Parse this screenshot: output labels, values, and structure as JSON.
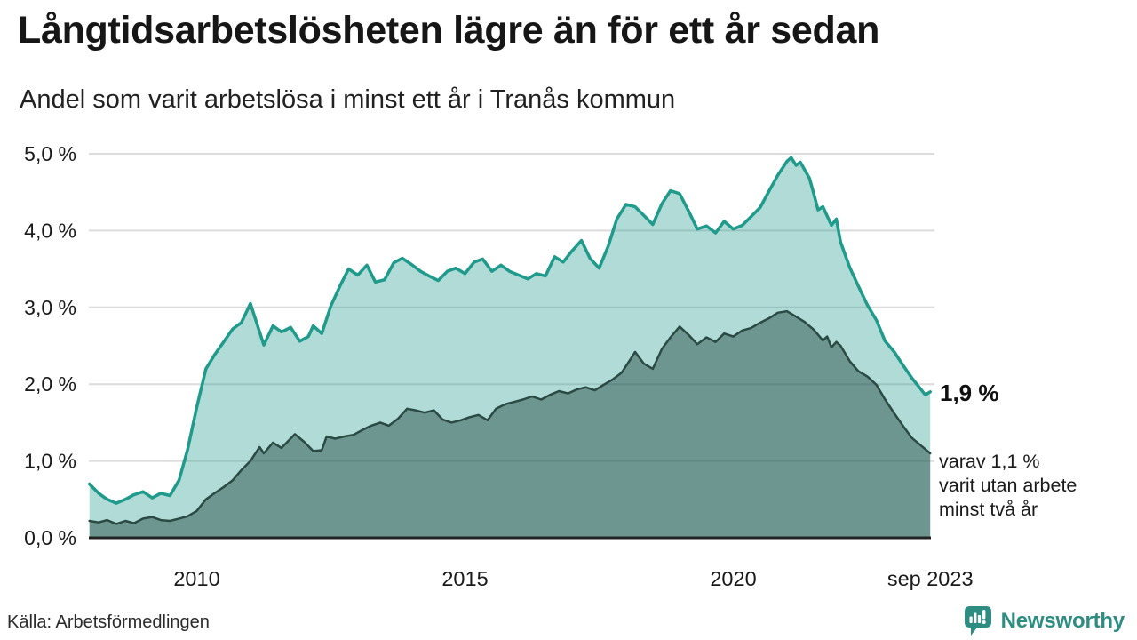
{
  "header": {
    "title": "Långtidsarbetslösheten lägre än för ett år sedan",
    "subtitle": "Andel som varit arbetslösa i minst ett år i Tranås kommun"
  },
  "chart_data": {
    "type": "area",
    "title": "Långtidsarbetslösheten lägre än för ett år sedan",
    "subtitle": "Andel som varit arbetslösa i minst ett år i Tranås kommun",
    "grid": true,
    "legend_position": "none",
    "y_axis": {
      "min": 0,
      "max": 5,
      "ticks": [
        {
          "value": 0,
          "label": "0,0 %"
        },
        {
          "value": 1,
          "label": "1,0 %"
        },
        {
          "value": 2,
          "label": "2,0 %"
        },
        {
          "value": 3,
          "label": "3,0 %"
        },
        {
          "value": 4,
          "label": "4,0 %"
        },
        {
          "value": 5,
          "label": "5,0 %"
        }
      ]
    },
    "x_axis": {
      "start": 2008.0,
      "end": 2023.67,
      "ticks": [
        {
          "year": 2010,
          "label": "2010"
        },
        {
          "year": 2015,
          "label": "2015"
        },
        {
          "year": 2020,
          "label": "2020"
        },
        {
          "year": 2023.67,
          "label": "sep 2023"
        }
      ]
    },
    "series": [
      {
        "name": "Arbetslösa minst ett år",
        "line_color": "#1f9a8b",
        "fill_color": "rgba(42,157,143,0.37)",
        "line_width": 3.5,
        "points": [
          [
            2008.0,
            0.7
          ],
          [
            2008.17,
            0.58
          ],
          [
            2008.33,
            0.5
          ],
          [
            2008.5,
            0.45
          ],
          [
            2008.67,
            0.5
          ],
          [
            2008.83,
            0.56
          ],
          [
            2009.0,
            0.6
          ],
          [
            2009.17,
            0.52
          ],
          [
            2009.33,
            0.58
          ],
          [
            2009.5,
            0.55
          ],
          [
            2009.67,
            0.75
          ],
          [
            2009.83,
            1.15
          ],
          [
            2010.0,
            1.7
          ],
          [
            2010.17,
            2.2
          ],
          [
            2010.33,
            2.38
          ],
          [
            2010.5,
            2.55
          ],
          [
            2010.67,
            2.72
          ],
          [
            2010.83,
            2.8
          ],
          [
            2011.0,
            3.05
          ],
          [
            2011.25,
            2.51
          ],
          [
            2011.42,
            2.76
          ],
          [
            2011.58,
            2.68
          ],
          [
            2011.75,
            2.74
          ],
          [
            2011.92,
            2.56
          ],
          [
            2012.08,
            2.62
          ],
          [
            2012.17,
            2.76
          ],
          [
            2012.33,
            2.66
          ],
          [
            2012.5,
            3.02
          ],
          [
            2012.67,
            3.28
          ],
          [
            2012.83,
            3.5
          ],
          [
            2013.0,
            3.42
          ],
          [
            2013.17,
            3.55
          ],
          [
            2013.33,
            3.33
          ],
          [
            2013.5,
            3.36
          ],
          [
            2013.67,
            3.58
          ],
          [
            2013.83,
            3.64
          ],
          [
            2014.0,
            3.56
          ],
          [
            2014.17,
            3.47
          ],
          [
            2014.33,
            3.41
          ],
          [
            2014.5,
            3.35
          ],
          [
            2014.67,
            3.47
          ],
          [
            2014.83,
            3.51
          ],
          [
            2015.0,
            3.44
          ],
          [
            2015.17,
            3.59
          ],
          [
            2015.33,
            3.63
          ],
          [
            2015.5,
            3.47
          ],
          [
            2015.67,
            3.55
          ],
          [
            2015.83,
            3.47
          ],
          [
            2016.0,
            3.42
          ],
          [
            2016.17,
            3.37
          ],
          [
            2016.33,
            3.44
          ],
          [
            2016.5,
            3.41
          ],
          [
            2016.67,
            3.66
          ],
          [
            2016.83,
            3.59
          ],
          [
            2017.0,
            3.74
          ],
          [
            2017.17,
            3.87
          ],
          [
            2017.33,
            3.64
          ],
          [
            2017.5,
            3.51
          ],
          [
            2017.67,
            3.8
          ],
          [
            2017.83,
            4.15
          ],
          [
            2018.0,
            4.34
          ],
          [
            2018.17,
            4.31
          ],
          [
            2018.33,
            4.2
          ],
          [
            2018.5,
            4.08
          ],
          [
            2018.67,
            4.35
          ],
          [
            2018.83,
            4.52
          ],
          [
            2019.0,
            4.48
          ],
          [
            2019.17,
            4.25
          ],
          [
            2019.33,
            4.02
          ],
          [
            2019.5,
            4.06
          ],
          [
            2019.67,
            3.97
          ],
          [
            2019.83,
            4.12
          ],
          [
            2020.0,
            4.02
          ],
          [
            2020.17,
            4.07
          ],
          [
            2020.33,
            4.18
          ],
          [
            2020.5,
            4.3
          ],
          [
            2020.67,
            4.52
          ],
          [
            2020.83,
            4.72
          ],
          [
            2021.0,
            4.9
          ],
          [
            2021.08,
            4.95
          ],
          [
            2021.17,
            4.85
          ],
          [
            2021.25,
            4.89
          ],
          [
            2021.42,
            4.68
          ],
          [
            2021.5,
            4.48
          ],
          [
            2021.58,
            4.27
          ],
          [
            2021.67,
            4.31
          ],
          [
            2021.83,
            4.07
          ],
          [
            2021.92,
            4.15
          ],
          [
            2022.0,
            3.85
          ],
          [
            2022.17,
            3.52
          ],
          [
            2022.33,
            3.28
          ],
          [
            2022.5,
            3.03
          ],
          [
            2022.67,
            2.83
          ],
          [
            2022.83,
            2.56
          ],
          [
            2023.0,
            2.42
          ],
          [
            2023.17,
            2.24
          ],
          [
            2023.33,
            2.08
          ],
          [
            2023.5,
            1.93
          ],
          [
            2023.58,
            1.86
          ],
          [
            2023.67,
            1.9
          ]
        ]
      },
      {
        "name": "Varav arbetslösa minst två år",
        "line_color": "#2b4a44",
        "fill_color": "rgba(26,61,56,0.44)",
        "line_width": 2.5,
        "points": [
          [
            2008.0,
            0.22
          ],
          [
            2008.17,
            0.2
          ],
          [
            2008.33,
            0.23
          ],
          [
            2008.5,
            0.18
          ],
          [
            2008.67,
            0.22
          ],
          [
            2008.83,
            0.19
          ],
          [
            2009.0,
            0.25
          ],
          [
            2009.17,
            0.27
          ],
          [
            2009.33,
            0.23
          ],
          [
            2009.5,
            0.22
          ],
          [
            2009.67,
            0.25
          ],
          [
            2009.83,
            0.28
          ],
          [
            2010.0,
            0.35
          ],
          [
            2010.17,
            0.5
          ],
          [
            2010.33,
            0.58
          ],
          [
            2010.5,
            0.66
          ],
          [
            2010.67,
            0.75
          ],
          [
            2010.83,
            0.88
          ],
          [
            2011.0,
            1.0
          ],
          [
            2011.17,
            1.18
          ],
          [
            2011.25,
            1.1
          ],
          [
            2011.42,
            1.24
          ],
          [
            2011.58,
            1.17
          ],
          [
            2011.83,
            1.35
          ],
          [
            2012.0,
            1.25
          ],
          [
            2012.17,
            1.13
          ],
          [
            2012.33,
            1.14
          ],
          [
            2012.42,
            1.32
          ],
          [
            2012.58,
            1.29
          ],
          [
            2012.75,
            1.32
          ],
          [
            2012.92,
            1.34
          ],
          [
            2013.08,
            1.4
          ],
          [
            2013.25,
            1.46
          ],
          [
            2013.42,
            1.5
          ],
          [
            2013.58,
            1.46
          ],
          [
            2013.75,
            1.55
          ],
          [
            2013.92,
            1.68
          ],
          [
            2014.08,
            1.66
          ],
          [
            2014.25,
            1.63
          ],
          [
            2014.42,
            1.66
          ],
          [
            2014.58,
            1.54
          ],
          [
            2014.75,
            1.5
          ],
          [
            2014.92,
            1.53
          ],
          [
            2015.08,
            1.57
          ],
          [
            2015.25,
            1.6
          ],
          [
            2015.42,
            1.53
          ],
          [
            2015.58,
            1.68
          ],
          [
            2015.75,
            1.74
          ],
          [
            2015.92,
            1.77
          ],
          [
            2016.08,
            1.8
          ],
          [
            2016.25,
            1.84
          ],
          [
            2016.42,
            1.8
          ],
          [
            2016.58,
            1.86
          ],
          [
            2016.75,
            1.91
          ],
          [
            2016.92,
            1.88
          ],
          [
            2017.08,
            1.93
          ],
          [
            2017.25,
            1.96
          ],
          [
            2017.42,
            1.92
          ],
          [
            2017.58,
            1.99
          ],
          [
            2017.75,
            2.06
          ],
          [
            2017.92,
            2.15
          ],
          [
            2018.08,
            2.32
          ],
          [
            2018.17,
            2.42
          ],
          [
            2018.33,
            2.27
          ],
          [
            2018.5,
            2.2
          ],
          [
            2018.67,
            2.46
          ],
          [
            2018.83,
            2.61
          ],
          [
            2019.0,
            2.75
          ],
          [
            2019.17,
            2.64
          ],
          [
            2019.33,
            2.52
          ],
          [
            2019.5,
            2.61
          ],
          [
            2019.67,
            2.55
          ],
          [
            2019.83,
            2.66
          ],
          [
            2020.0,
            2.62
          ],
          [
            2020.17,
            2.7
          ],
          [
            2020.33,
            2.73
          ],
          [
            2020.5,
            2.8
          ],
          [
            2020.67,
            2.86
          ],
          [
            2020.83,
            2.93
          ],
          [
            2021.0,
            2.95
          ],
          [
            2021.17,
            2.88
          ],
          [
            2021.33,
            2.81
          ],
          [
            2021.5,
            2.71
          ],
          [
            2021.67,
            2.57
          ],
          [
            2021.75,
            2.62
          ],
          [
            2021.83,
            2.48
          ],
          [
            2021.92,
            2.55
          ],
          [
            2022.0,
            2.5
          ],
          [
            2022.17,
            2.3
          ],
          [
            2022.33,
            2.17
          ],
          [
            2022.5,
            2.1
          ],
          [
            2022.67,
            1.99
          ],
          [
            2022.83,
            1.8
          ],
          [
            2023.0,
            1.62
          ],
          [
            2023.17,
            1.45
          ],
          [
            2023.33,
            1.3
          ],
          [
            2023.5,
            1.2
          ],
          [
            2023.67,
            1.1
          ]
        ]
      }
    ],
    "annotations": {
      "end_value_label": "1,9 %",
      "detail_lines": [
        "varav 1,1 %",
        "varit utan arbete",
        "minst två år"
      ]
    },
    "style": {
      "grid_color": "#dcdcdc",
      "axis_color": "#222222",
      "tick_text_color": "#1a1a1a"
    }
  },
  "footer": {
    "source": "Källa: Arbetsförmedlingen",
    "brand": "Newsworthy",
    "brand_color": "#2e8c81"
  }
}
